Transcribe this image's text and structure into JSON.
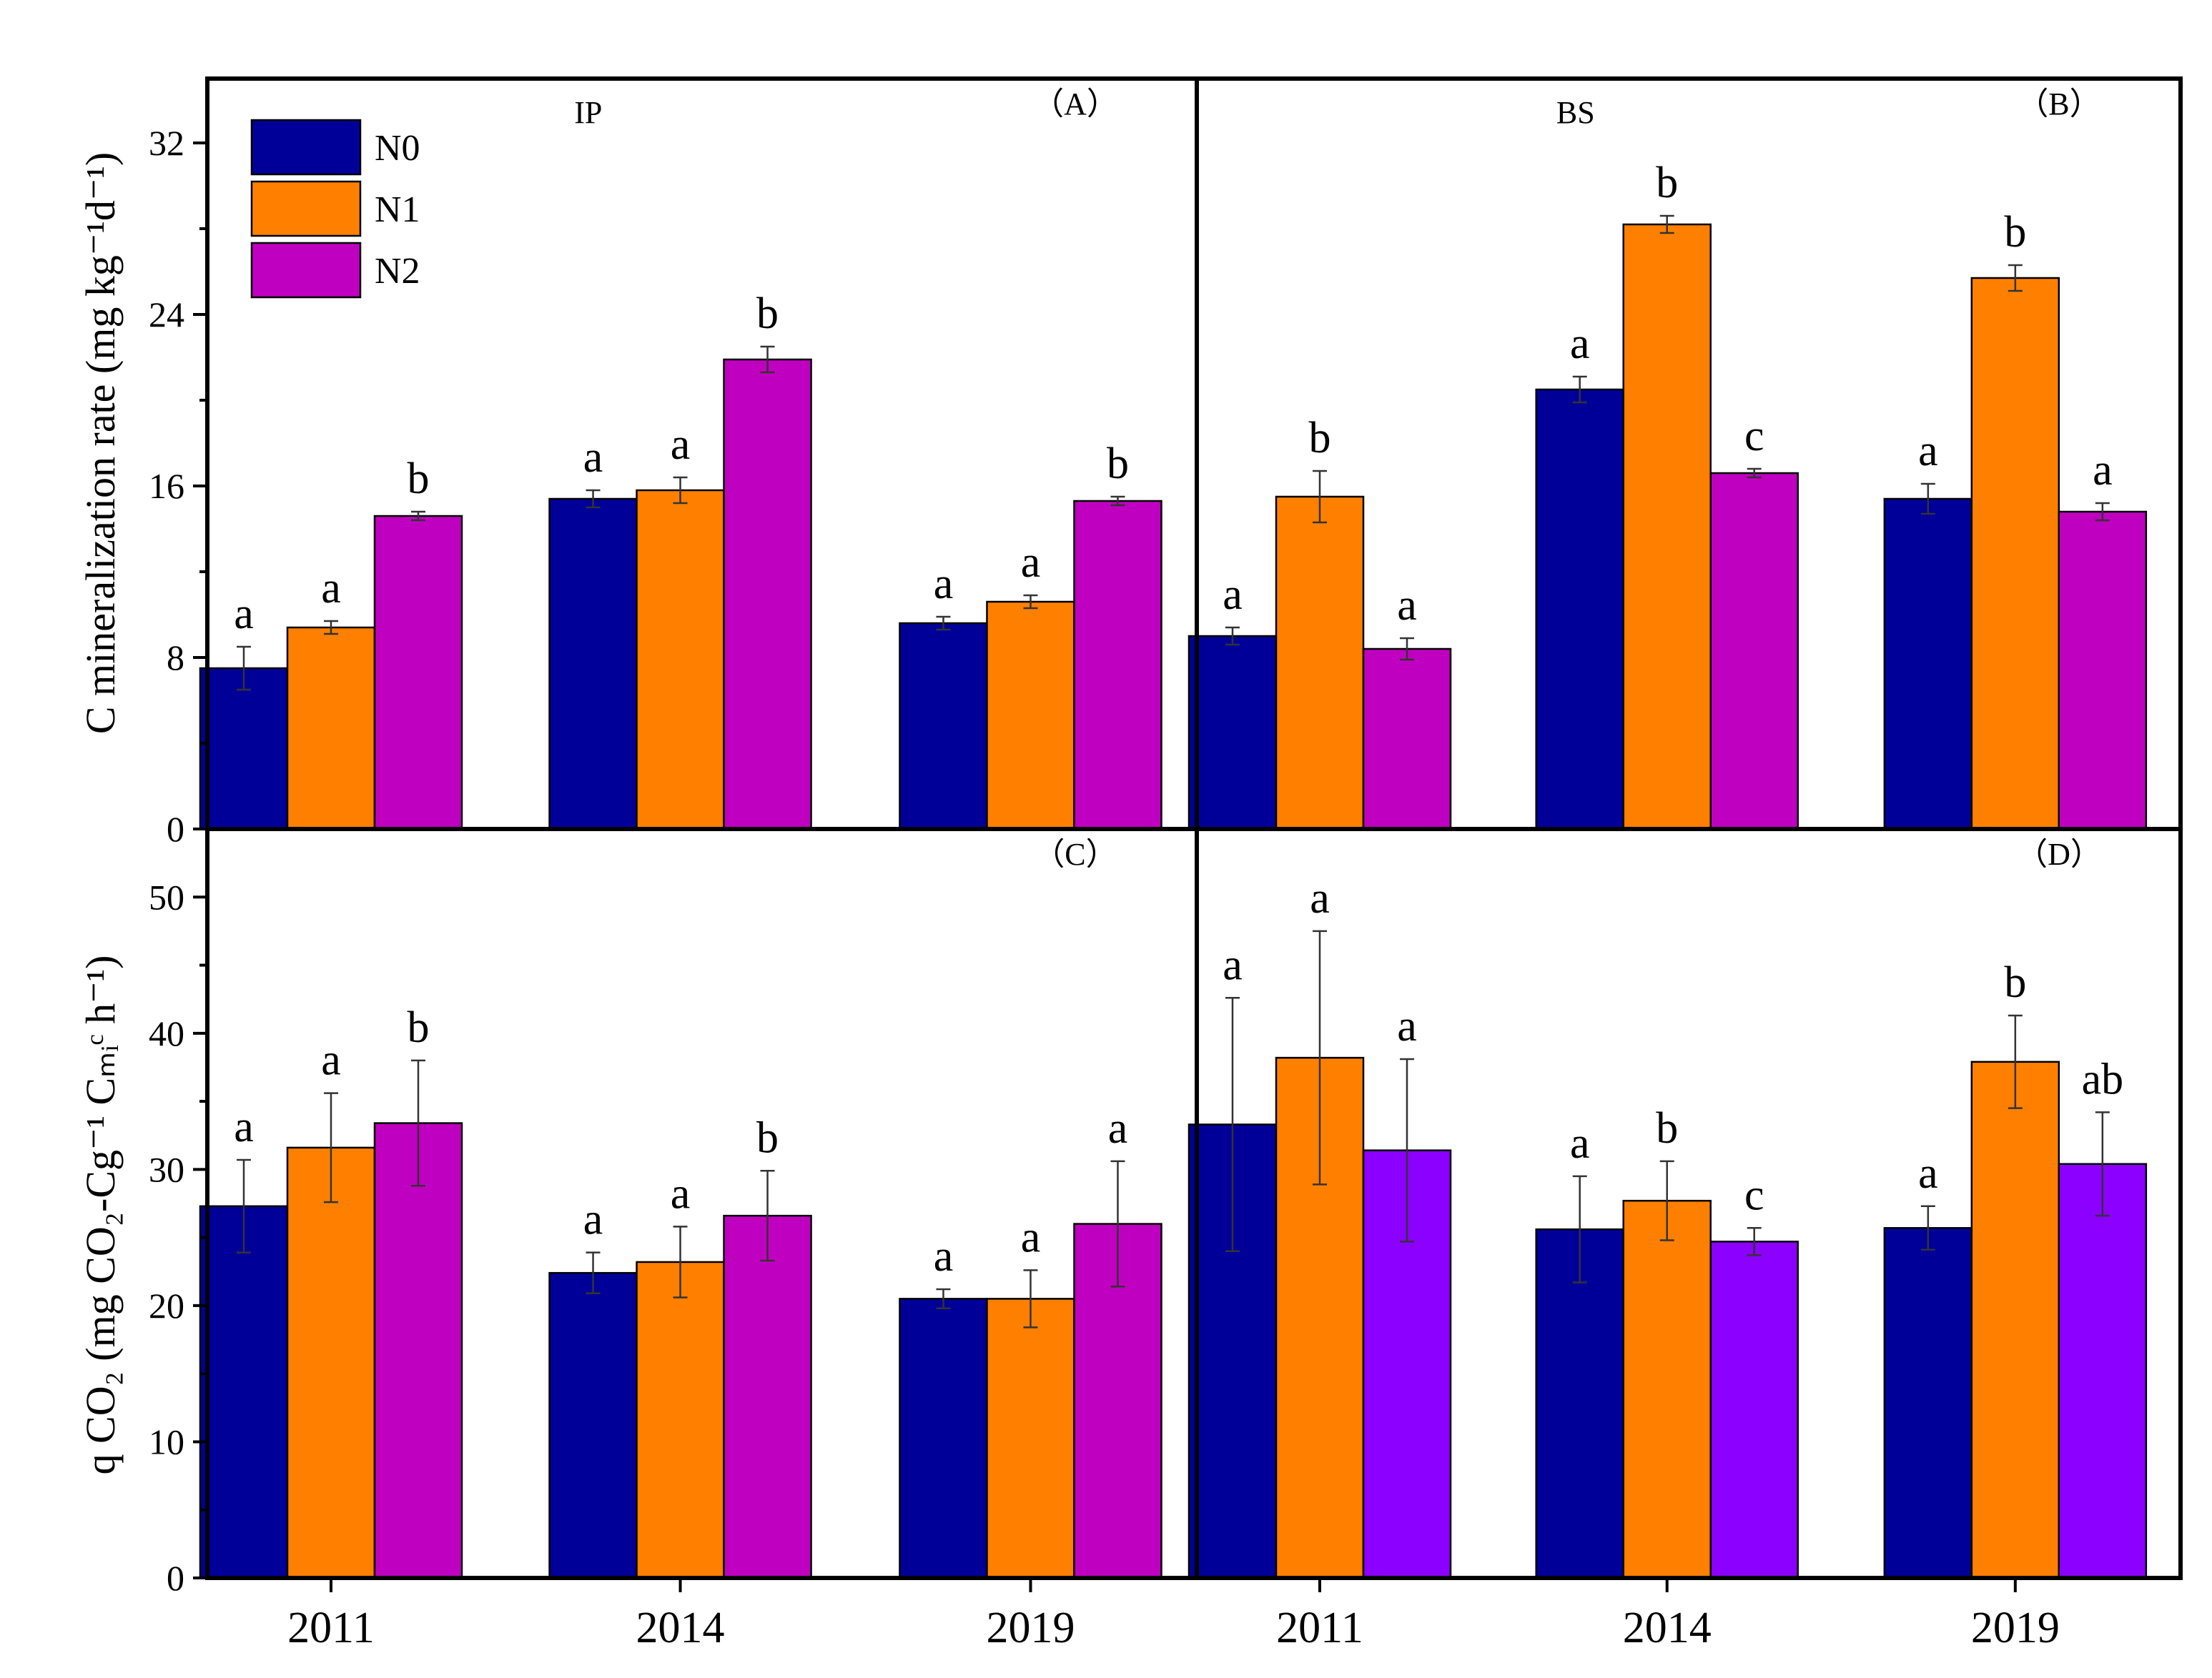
{
  "colors": {
    "N0": "#000099",
    "N1": "#ff8000",
    "N2": "#c000c0",
    "N2_alt": "#8c00ff"
  },
  "y_titles": {
    "top": "C mineralization rate (mg kg⁻¹d⁻¹)",
    "bottom": "q CO₂ (mg CO₂-Cg⁻¹ Cₘᵢᶜ h⁻¹)"
  },
  "chart_data": [
    {
      "panel": "A",
      "panel_label": "（A）",
      "site_label": "IP",
      "type": "bar",
      "categories": [
        "2011",
        "2014",
        "2019"
      ],
      "ylim": [
        0,
        35
      ],
      "ticks": [
        "0",
        "8",
        "16",
        "24",
        "32"
      ],
      "tick_values": [
        0,
        8,
        16,
        24,
        32
      ],
      "legend": [
        "N0",
        "N1",
        "N2"
      ],
      "series": [
        {
          "name": "N0",
          "values": [
            7.5,
            15.4,
            9.6
          ],
          "err": [
            1.0,
            0.4,
            0.3
          ],
          "sig": [
            "a",
            "a",
            "a"
          ]
        },
        {
          "name": "N1",
          "values": [
            9.4,
            15.8,
            10.6
          ],
          "err": [
            0.3,
            0.6,
            0.3
          ],
          "sig": [
            "a",
            "a",
            "a"
          ]
        },
        {
          "name": "N2",
          "values": [
            14.6,
            21.9,
            15.3
          ],
          "err": [
            0.2,
            0.6,
            0.2
          ],
          "sig": [
            "b",
            "b",
            "b"
          ]
        }
      ]
    },
    {
      "panel": "B",
      "panel_label": "（B）",
      "site_label": "BS",
      "type": "bar",
      "categories": [
        "2011",
        "2014",
        "2019"
      ],
      "ylim": [
        0,
        35
      ],
      "series": [
        {
          "name": "N0",
          "values": [
            9.0,
            20.5,
            15.4
          ],
          "err": [
            0.4,
            0.6,
            0.7
          ],
          "sig": [
            "a",
            "a",
            "a"
          ]
        },
        {
          "name": "N1",
          "values": [
            15.5,
            28.2,
            25.7
          ],
          "err": [
            1.2,
            0.4,
            0.6
          ],
          "sig": [
            "b",
            "b",
            "b"
          ]
        },
        {
          "name": "N2",
          "values": [
            8.4,
            16.6,
            14.8
          ],
          "err": [
            0.5,
            0.2,
            0.4
          ],
          "sig": [
            "a",
            "c",
            "a"
          ]
        }
      ]
    },
    {
      "panel": "C",
      "panel_label": "（C）",
      "type": "bar",
      "categories": [
        "2011",
        "2014",
        "2019"
      ],
      "ylim": [
        0,
        55
      ],
      "ticks": [
        "0",
        "10",
        "20",
        "30",
        "40",
        "50"
      ],
      "tick_values": [
        0,
        10,
        20,
        30,
        40,
        50
      ],
      "series": [
        {
          "name": "N0",
          "values": [
            27.3,
            22.4,
            20.5
          ],
          "err": [
            3.4,
            1.5,
            0.7
          ],
          "sig": [
            "a",
            "a",
            "a"
          ]
        },
        {
          "name": "N1",
          "values": [
            31.6,
            23.2,
            20.5
          ],
          "err": [
            4.0,
            2.6,
            2.1
          ],
          "sig": [
            "a",
            "a",
            "a"
          ]
        },
        {
          "name": "N2",
          "values": [
            33.4,
            26.6,
            26.0
          ],
          "err": [
            4.6,
            3.3,
            4.6
          ],
          "sig": [
            "b",
            "b",
            "a"
          ]
        }
      ]
    },
    {
      "panel": "D",
      "panel_label": "（D）",
      "type": "bar",
      "categories": [
        "2011",
        "2014",
        "2019"
      ],
      "ylim": [
        0,
        55
      ],
      "series": [
        {
          "name": "N0",
          "values": [
            33.3,
            25.6,
            25.7
          ],
          "err": [
            9.3,
            3.9,
            1.6
          ],
          "sig": [
            "a",
            "a",
            "a"
          ]
        },
        {
          "name": "N1",
          "values": [
            38.2,
            27.7,
            37.9
          ],
          "err": [
            9.3,
            2.9,
            3.4
          ],
          "sig": [
            "a",
            "b",
            "b"
          ]
        },
        {
          "name": "N2",
          "values": [
            31.4,
            24.7,
            30.4
          ],
          "err": [
            6.7,
            1.0,
            3.8
          ],
          "sig": [
            "a",
            "c",
            "ab"
          ]
        }
      ]
    }
  ]
}
